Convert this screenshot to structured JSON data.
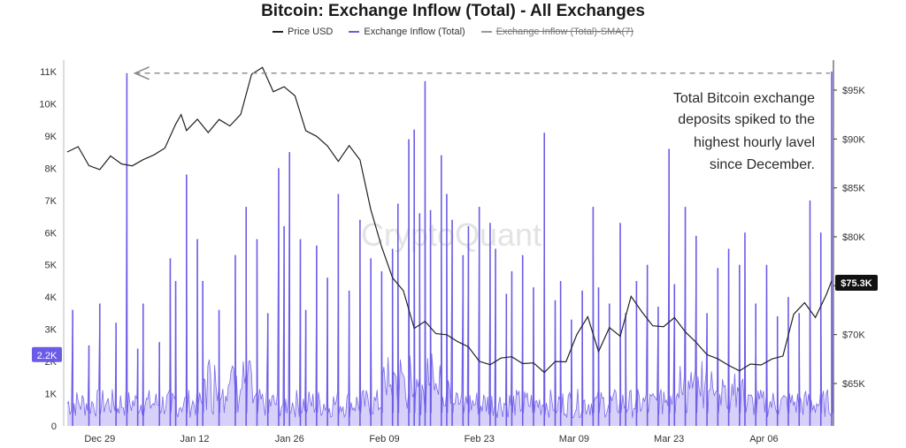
{
  "chart_data": {
    "type": "line",
    "title": "Bitcoin: Exchange Inflow (Total) - All Exchanges",
    "legend": [
      {
        "name": "Price USD",
        "color": "#222222",
        "active": true
      },
      {
        "name": "Exchange Inflow (Total)",
        "color": "#6b5ce7",
        "active": true
      },
      {
        "name": "Exchange Inflow (Total)-SMA(7)",
        "color": "#999999",
        "active": false
      }
    ],
    "x_ticks": [
      "Dec 29",
      "Jan 12",
      "Jan 26",
      "Feb 09",
      "Feb 23",
      "Mar 09",
      "Mar 23",
      "Apr 06"
    ],
    "left_axis": {
      "ticks": [
        "0",
        "1K",
        "2K",
        "3K",
        "4K",
        "5K",
        "6K",
        "7K",
        "8K",
        "9K",
        "10K",
        "11K"
      ],
      "ylim": [
        0,
        11000
      ]
    },
    "right_axis": {
      "ticks": [
        "$65K",
        "$70K",
        "$75K",
        "$80K",
        "$85K",
        "$90K",
        "$95K"
      ],
      "ylim": [
        61000,
        97500
      ]
    },
    "current_inflow_label": "2.2K",
    "current_price_label": "$75.3K",
    "annotation": [
      "Total Bitcoin exchange",
      "deposits spiked to the",
      "highest hourly lavel",
      "since December."
    ],
    "watermark": "CryptoQuant",
    "series": [
      {
        "name": "Price USD",
        "axis": "right",
        "color": "#222222",
        "x": [
          0,
          2,
          4,
          6,
          8,
          10,
          12,
          14,
          16,
          18,
          20,
          21,
          22,
          24,
          26,
          28,
          30,
          32,
          34,
          36,
          38,
          40,
          42,
          44,
          46,
          48,
          50,
          52,
          54,
          56,
          58,
          60,
          62,
          64,
          66,
          68,
          70,
          72,
          74,
          76,
          78,
          80,
          82,
          84,
          86,
          88,
          90,
          92,
          94,
          96,
          98,
          100,
          102,
          104,
          106,
          108,
          110,
          112,
          114,
          116,
          118,
          120,
          122,
          124,
          126,
          128,
          130,
          132,
          134,
          136,
          138,
          140,
          141
        ],
        "values": [
          88.5,
          89.5,
          87.3,
          87.0,
          88.0,
          87.3,
          87.5,
          88.0,
          88.5,
          89.0,
          91.5,
          92.5,
          91.0,
          92.3,
          90.5,
          92.0,
          91.5,
          92.5,
          96.5,
          97.3,
          95.0,
          95.5,
          94.5,
          91.0,
          90.2,
          89.5,
          88.0,
          89.5,
          88.0,
          82.5,
          79.0,
          76.0,
          74.5,
          70.5,
          71.5,
          69.8,
          70.0,
          69.0,
          68.5,
          67.5,
          66.8,
          67.5,
          68.0,
          66.8,
          67.0,
          66.0,
          67.0,
          67.3,
          70.0,
          72.0,
          68.5,
          70.5,
          70.0,
          74.0,
          72.5,
          71.0,
          70.8,
          71.5,
          70.0,
          69.5,
          68.0,
          67.5,
          67.0,
          66.5,
          67.0,
          66.8,
          67.5,
          68.0,
          72.0,
          73.0,
          72.0,
          74.0,
          75.3
        ]
      },
      {
        "name": "Exchange Inflow (Total)",
        "axis": "left",
        "color": "#6b5ce7",
        "spikes": [
          {
            "x": 1,
            "y": 3600
          },
          {
            "x": 4,
            "y": 2500
          },
          {
            "x": 6,
            "y": 3800
          },
          {
            "x": 9,
            "y": 3200
          },
          {
            "x": 11,
            "y": 10950
          },
          {
            "x": 13,
            "y": 2400
          },
          {
            "x": 14,
            "y": 3800
          },
          {
            "x": 17,
            "y": 2600
          },
          {
            "x": 19,
            "y": 5200
          },
          {
            "x": 20,
            "y": 4500
          },
          {
            "x": 22,
            "y": 7800
          },
          {
            "x": 24,
            "y": 5800
          },
          {
            "x": 25,
            "y": 4500
          },
          {
            "x": 28,
            "y": 3600
          },
          {
            "x": 31,
            "y": 5300
          },
          {
            "x": 33,
            "y": 6800
          },
          {
            "x": 35,
            "y": 5800
          },
          {
            "x": 37,
            "y": 3500
          },
          {
            "x": 39,
            "y": 8000
          },
          {
            "x": 40,
            "y": 6200
          },
          {
            "x": 41,
            "y": 8500
          },
          {
            "x": 43,
            "y": 5800
          },
          {
            "x": 44,
            "y": 3600
          },
          {
            "x": 46,
            "y": 5600
          },
          {
            "x": 48,
            "y": 4600
          },
          {
            "x": 50,
            "y": 7200
          },
          {
            "x": 52,
            "y": 4200
          },
          {
            "x": 54,
            "y": 6400
          },
          {
            "x": 56,
            "y": 5200
          },
          {
            "x": 58,
            "y": 4800
          },
          {
            "x": 60,
            "y": 5500
          },
          {
            "x": 61,
            "y": 6900
          },
          {
            "x": 63,
            "y": 8900
          },
          {
            "x": 64,
            "y": 9200
          },
          {
            "x": 65,
            "y": 6600
          },
          {
            "x": 66,
            "y": 10700
          },
          {
            "x": 67,
            "y": 6700
          },
          {
            "x": 69,
            "y": 8400
          },
          {
            "x": 70,
            "y": 7200
          },
          {
            "x": 71,
            "y": 6400
          },
          {
            "x": 73,
            "y": 5300
          },
          {
            "x": 74,
            "y": 6200
          },
          {
            "x": 76,
            "y": 6800
          },
          {
            "x": 78,
            "y": 6300
          },
          {
            "x": 79,
            "y": 5500
          },
          {
            "x": 81,
            "y": 4100
          },
          {
            "x": 82,
            "y": 4800
          },
          {
            "x": 84,
            "y": 5300
          },
          {
            "x": 86,
            "y": 4300
          },
          {
            "x": 88,
            "y": 9100
          },
          {
            "x": 90,
            "y": 3900
          },
          {
            "x": 91,
            "y": 4500
          },
          {
            "x": 93,
            "y": 3300
          },
          {
            "x": 95,
            "y": 4200
          },
          {
            "x": 97,
            "y": 6800
          },
          {
            "x": 98,
            "y": 4300
          },
          {
            "x": 100,
            "y": 3800
          },
          {
            "x": 102,
            "y": 6300
          },
          {
            "x": 103,
            "y": 3500
          },
          {
            "x": 105,
            "y": 4500
          },
          {
            "x": 107,
            "y": 5000
          },
          {
            "x": 109,
            "y": 3700
          },
          {
            "x": 111,
            "y": 8600
          },
          {
            "x": 112,
            "y": 4400
          },
          {
            "x": 114,
            "y": 6800
          },
          {
            "x": 116,
            "y": 5900
          },
          {
            "x": 118,
            "y": 3500
          },
          {
            "x": 120,
            "y": 4900
          },
          {
            "x": 122,
            "y": 5500
          },
          {
            "x": 124,
            "y": 5000
          },
          {
            "x": 125,
            "y": 6000
          },
          {
            "x": 127,
            "y": 3800
          },
          {
            "x": 129,
            "y": 5000
          },
          {
            "x": 131,
            "y": 3400
          },
          {
            "x": 133,
            "y": 4000
          },
          {
            "x": 135,
            "y": 3500
          },
          {
            "x": 137,
            "y": 7000
          },
          {
            "x": 139,
            "y": 6000
          },
          {
            "x": 141,
            "y": 11000
          }
        ]
      }
    ],
    "xlim": [
      0,
      141
    ],
    "reference_line": {
      "label": "highest since December",
      "y": 10950
    },
    "grid": false
  }
}
